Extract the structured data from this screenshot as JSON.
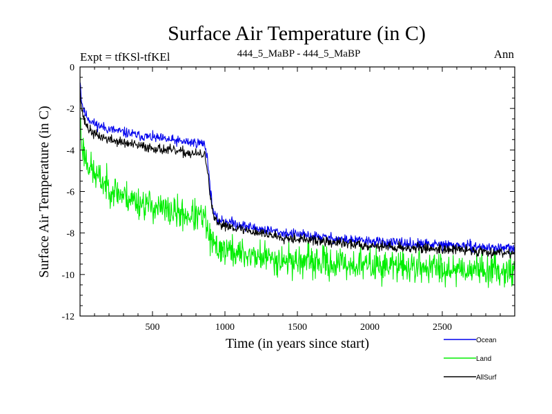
{
  "chart_data": {
    "type": "line",
    "title": "Surface Air Temperature (in C)",
    "subtitle_left": "Expt = tfKSl-tfKEl",
    "subtitle_center": "444_5_MaBP - 444_5_MaBP",
    "subtitle_right": "Ann",
    "xlabel": "Time (in years since start)",
    "ylabel": "Surface Air Temperature (in C)",
    "xlim": [
      0,
      3000
    ],
    "ylim": [
      -12,
      0
    ],
    "x_ticks": [
      500,
      1000,
      1500,
      2000,
      2500
    ],
    "y_ticks": [
      0,
      -2,
      -4,
      -6,
      -8,
      -10,
      -12
    ],
    "grid": false,
    "legend_position": "bottom-right",
    "series": [
      {
        "name": "Ocean",
        "color": "#0000ee",
        "noise": 0.12,
        "seed": 11,
        "x": [
          1,
          10,
          30,
          60,
          100,
          200,
          300,
          400,
          500,
          600,
          700,
          800,
          860,
          880,
          900,
          920,
          950,
          1000,
          1100,
          1200,
          1400,
          1600,
          1800,
          2000,
          2200,
          2400,
          2600,
          2800,
          3000
        ],
        "values": [
          -0.6,
          -1.6,
          -2.2,
          -2.5,
          -2.75,
          -3.0,
          -3.15,
          -3.3,
          -3.4,
          -3.5,
          -3.6,
          -3.65,
          -3.7,
          -4.4,
          -6.0,
          -7.0,
          -7.4,
          -7.4,
          -7.6,
          -7.75,
          -8.0,
          -8.15,
          -8.3,
          -8.4,
          -8.5,
          -8.55,
          -8.6,
          -8.7,
          -8.75
        ]
      },
      {
        "name": "Land",
        "color": "#00ee00",
        "noise": 0.38,
        "seed": 23,
        "x": [
          1,
          10,
          30,
          60,
          100,
          200,
          300,
          400,
          500,
          600,
          700,
          800,
          860,
          880,
          900,
          920,
          950,
          1000,
          1100,
          1200,
          1400,
          1600,
          1800,
          2000,
          2200,
          2400,
          2600,
          2800,
          3000
        ],
        "values": [
          -2.5,
          -3.6,
          -4.2,
          -4.7,
          -5.2,
          -5.8,
          -6.2,
          -6.5,
          -6.7,
          -6.95,
          -7.1,
          -7.2,
          -7.3,
          -7.9,
          -8.4,
          -8.6,
          -8.7,
          -8.8,
          -9.0,
          -9.1,
          -9.3,
          -9.4,
          -9.5,
          -9.55,
          -9.6,
          -9.65,
          -9.7,
          -9.75,
          -9.8
        ]
      },
      {
        "name": "AllSurf",
        "color": "#000000",
        "noise": 0.12,
        "seed": 37,
        "x": [
          1,
          10,
          30,
          60,
          100,
          200,
          300,
          400,
          500,
          600,
          700,
          800,
          860,
          880,
          900,
          920,
          950,
          1000,
          1100,
          1200,
          1400,
          1600,
          1800,
          2000,
          2200,
          2400,
          2600,
          2800,
          3000
        ],
        "values": [
          -1.0,
          -2.0,
          -2.6,
          -3.0,
          -3.25,
          -3.5,
          -3.65,
          -3.8,
          -3.9,
          -4.0,
          -4.1,
          -4.2,
          -4.25,
          -4.9,
          -6.4,
          -7.2,
          -7.6,
          -7.6,
          -7.8,
          -7.95,
          -8.2,
          -8.35,
          -8.5,
          -8.6,
          -8.7,
          -8.75,
          -8.8,
          -8.9,
          -8.95
        ]
      }
    ]
  }
}
